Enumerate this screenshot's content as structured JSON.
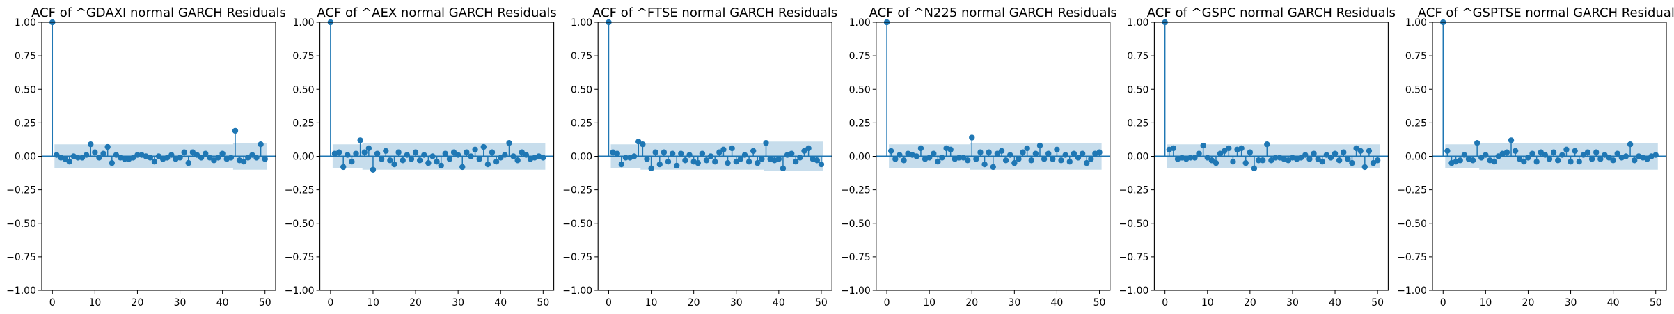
{
  "colors": {
    "stem": "#1f77b4",
    "band": "#1f77b4",
    "axis": "#000000",
    "zero_line": "#1f77b4"
  },
  "chart_data": [
    {
      "type": "scatter",
      "title": "ACF of ^GDAXI normal GARCH Residuals",
      "xlabel": "",
      "ylabel": "",
      "xlim": [
        -2.5,
        52.5
      ],
      "ylim": [
        -1.0,
        1.0
      ],
      "xticks": [
        "0",
        "10",
        "20",
        "30",
        "40",
        "50"
      ],
      "yticks": [
        "1.00",
        "0.75",
        "0.50",
        "0.25",
        "0.00",
        "−0.25",
        "−0.50",
        "−0.75",
        "−1.00"
      ],
      "band": [
        0.1,
        0.09,
        0.09,
        0.09,
        0.09,
        0.09,
        0.09,
        0.09,
        0.09,
        0.09,
        0.09,
        0.09,
        0.09,
        0.09,
        0.09,
        0.09,
        0.09,
        0.09,
        0.09,
        0.09,
        0.09,
        0.09,
        0.09,
        0.09,
        0.09,
        0.09,
        0.09,
        0.09,
        0.09,
        0.09,
        0.09,
        0.09,
        0.09,
        0.09,
        0.09,
        0.09,
        0.09,
        0.09,
        0.09,
        0.09,
        0.09,
        0.09,
        0.09,
        0.1,
        0.1,
        0.1,
        0.1,
        0.1,
        0.1,
        0.1,
        0.1
      ],
      "acf": [
        1.0,
        0.01,
        -0.01,
        -0.02,
        -0.04,
        0.0,
        -0.01,
        -0.01,
        0.01,
        0.09,
        0.03,
        -0.01,
        0.02,
        0.07,
        -0.05,
        0.01,
        -0.01,
        -0.02,
        -0.02,
        -0.01,
        0.01,
        0.01,
        0.0,
        -0.01,
        -0.04,
        0.0,
        -0.02,
        -0.01,
        0.01,
        -0.02,
        -0.01,
        0.03,
        -0.05,
        0.03,
        0.01,
        -0.01,
        0.02,
        -0.01,
        -0.03,
        -0.01,
        0.02,
        -0.02,
        -0.01,
        0.19,
        -0.03,
        -0.04,
        -0.01,
        0.01,
        -0.01,
        0.09,
        -0.02
      ]
    },
    {
      "type": "scatter",
      "title": "ACF of ^AEX normal GARCH Residuals",
      "xlabel": "",
      "ylabel": "",
      "xlim": [
        -2.5,
        52.5
      ],
      "ylim": [
        -1.0,
        1.0
      ],
      "xticks": [
        "0",
        "10",
        "20",
        "30",
        "40",
        "50"
      ],
      "yticks": [
        "1.00",
        "0.75",
        "0.50",
        "0.25",
        "0.00",
        "−0.25",
        "−0.50",
        "−0.75",
        "−1.00"
      ],
      "band": [
        0.09,
        0.09,
        0.09,
        0.09,
        0.09,
        0.09,
        0.09,
        0.09,
        0.1,
        0.1,
        0.1,
        0.1,
        0.1,
        0.1,
        0.1,
        0.1,
        0.1,
        0.1,
        0.1,
        0.1,
        0.1,
        0.1,
        0.1,
        0.1,
        0.1,
        0.1,
        0.1,
        0.1,
        0.1,
        0.1,
        0.1,
        0.1,
        0.1,
        0.1,
        0.1,
        0.1,
        0.1,
        0.1,
        0.1,
        0.1,
        0.1,
        0.1,
        0.1,
        0.1,
        0.1,
        0.1,
        0.1,
        0.1,
        0.1,
        0.1,
        0.1
      ],
      "acf": [
        1.0,
        0.02,
        0.03,
        -0.08,
        0.01,
        -0.04,
        0.02,
        0.12,
        0.03,
        0.06,
        -0.1,
        0.02,
        -0.02,
        0.04,
        -0.03,
        -0.06,
        0.03,
        -0.03,
        0.01,
        -0.02,
        0.03,
        -0.03,
        0.01,
        -0.05,
        0.0,
        -0.04,
        -0.07,
        0.02,
        -0.02,
        0.03,
        0.01,
        -0.08,
        0.03,
        0.0,
        0.05,
        -0.02,
        0.07,
        -0.06,
        0.03,
        -0.04,
        -0.01,
        0.01,
        0.1,
        0.0,
        -0.03,
        0.03,
        0.01,
        -0.02,
        -0.01,
        0.0,
        -0.01
      ]
    },
    {
      "type": "scatter",
      "title": "ACF of ^FTSE normal GARCH Residuals",
      "xlabel": "",
      "ylabel": "",
      "xlim": [
        -2.5,
        52.5
      ],
      "ylim": [
        -1.0,
        1.0
      ],
      "xticks": [
        "0",
        "10",
        "20",
        "30",
        "40",
        "50"
      ],
      "yticks": [
        "1.00",
        "0.75",
        "0.50",
        "0.25",
        "0.00",
        "−0.25",
        "−0.50",
        "−0.75",
        "−1.00"
      ],
      "band": [
        0.09,
        0.09,
        0.09,
        0.09,
        0.09,
        0.09,
        0.09,
        0.09,
        0.1,
        0.1,
        0.1,
        0.1,
        0.1,
        0.1,
        0.1,
        0.1,
        0.1,
        0.1,
        0.1,
        0.1,
        0.1,
        0.1,
        0.1,
        0.1,
        0.1,
        0.1,
        0.1,
        0.1,
        0.1,
        0.1,
        0.1,
        0.1,
        0.1,
        0.1,
        0.1,
        0.1,
        0.1,
        0.11,
        0.11,
        0.11,
        0.11,
        0.11,
        0.11,
        0.11,
        0.11,
        0.11,
        0.11,
        0.11,
        0.11,
        0.11,
        0.11
      ],
      "acf": [
        1.0,
        0.03,
        0.02,
        -0.06,
        -0.01,
        -0.01,
        0.0,
        0.11,
        0.09,
        -0.02,
        -0.09,
        0.03,
        -0.06,
        0.03,
        -0.04,
        0.02,
        -0.07,
        0.02,
        -0.03,
        0.01,
        -0.04,
        -0.05,
        0.02,
        -0.03,
        0.0,
        -0.04,
        0.03,
        0.05,
        -0.05,
        0.06,
        -0.04,
        -0.02,
        0.01,
        -0.04,
        0.04,
        -0.05,
        -0.02,
        0.1,
        -0.02,
        -0.03,
        -0.02,
        -0.09,
        0.01,
        0.02,
        -0.04,
        -0.01,
        0.04,
        0.06,
        -0.02,
        -0.03,
        -0.06
      ]
    },
    {
      "type": "scatter",
      "title": "ACF of ^N225 normal GARCH Residuals",
      "xlabel": "",
      "ylabel": "",
      "xlim": [
        -2.5,
        52.5
      ],
      "ylim": [
        -1.0,
        1.0
      ],
      "xticks": [
        "0",
        "10",
        "20",
        "30",
        "40",
        "50"
      ],
      "yticks": [
        "1.00",
        "0.75",
        "0.50",
        "0.25",
        "0.00",
        "−0.25",
        "−0.50",
        "−0.75",
        "−1.00"
      ],
      "band": [
        0.09,
        0.09,
        0.09,
        0.09,
        0.09,
        0.09,
        0.09,
        0.09,
        0.09,
        0.09,
        0.09,
        0.09,
        0.09,
        0.09,
        0.09,
        0.09,
        0.09,
        0.09,
        0.09,
        0.09,
        0.1,
        0.1,
        0.1,
        0.1,
        0.1,
        0.1,
        0.1,
        0.1,
        0.1,
        0.1,
        0.1,
        0.1,
        0.1,
        0.1,
        0.1,
        0.1,
        0.1,
        0.1,
        0.1,
        0.1,
        0.1,
        0.1,
        0.1,
        0.1,
        0.1,
        0.1,
        0.1,
        0.1,
        0.1,
        0.1,
        0.1
      ],
      "acf": [
        1.0,
        0.04,
        -0.02,
        0.01,
        -0.03,
        0.02,
        0.01,
        0.0,
        0.06,
        -0.02,
        -0.01,
        0.02,
        -0.04,
        -0.01,
        0.06,
        0.05,
        -0.02,
        -0.01,
        -0.01,
        -0.03,
        0.14,
        -0.02,
        0.03,
        -0.06,
        0.03,
        -0.08,
        0.02,
        0.04,
        -0.03,
        0.01,
        -0.05,
        -0.02,
        0.03,
        0.06,
        -0.03,
        0.02,
        0.08,
        -0.02,
        0.02,
        -0.02,
        0.05,
        -0.03,
        0.01,
        -0.04,
        0.02,
        -0.01,
        0.02,
        -0.05,
        -0.02,
        0.02,
        0.03
      ]
    },
    {
      "type": "scatter",
      "title": "ACF of ^GSPC normal GARCH Residuals",
      "xlabel": "",
      "ylabel": "",
      "xlim": [
        -2.5,
        52.5
      ],
      "ylim": [
        -1.0,
        1.0
      ],
      "xticks": [
        "0",
        "10",
        "20",
        "30",
        "40",
        "50"
      ],
      "yticks": [
        "1.00",
        "0.75",
        "0.50",
        "0.25",
        "0.00",
        "−0.25",
        "−0.50",
        "−0.75",
        "−1.00"
      ],
      "band": [
        0.09,
        0.09,
        0.09,
        0.09,
        0.09,
        0.09,
        0.09,
        0.09,
        0.09,
        0.09,
        0.09,
        0.09,
        0.09,
        0.09,
        0.09,
        0.09,
        0.09,
        0.09,
        0.09,
        0.09,
        0.09,
        0.09,
        0.09,
        0.09,
        0.09,
        0.09,
        0.09,
        0.09,
        0.09,
        0.09,
        0.09,
        0.09,
        0.09,
        0.09,
        0.09,
        0.09,
        0.09,
        0.09,
        0.09,
        0.09,
        0.09,
        0.09,
        0.09,
        0.09,
        0.09,
        0.09,
        0.09,
        0.09,
        0.09,
        0.09,
        0.09
      ],
      "acf": [
        1.0,
        0.05,
        0.06,
        -0.02,
        -0.01,
        -0.02,
        -0.01,
        -0.01,
        0.02,
        0.08,
        -0.01,
        -0.03,
        -0.05,
        0.02,
        0.04,
        0.06,
        -0.04,
        0.05,
        0.06,
        -0.05,
        0.03,
        -0.09,
        -0.03,
        -0.03,
        0.09,
        -0.03,
        -0.01,
        -0.01,
        -0.02,
        -0.03,
        -0.01,
        -0.02,
        -0.01,
        0.01,
        -0.02,
        0.02,
        -0.02,
        -0.04,
        0.01,
        -0.01,
        0.02,
        -0.03,
        0.03,
        -0.02,
        -0.05,
        0.06,
        0.04,
        -0.08,
        0.04,
        -0.05,
        -0.03
      ]
    },
    {
      "type": "scatter",
      "title": "ACF of ^GSPTSE normal GARCH Residuals",
      "xlabel": "",
      "ylabel": "",
      "xlim": [
        -2.5,
        52.5
      ],
      "ylim": [
        -1.0,
        1.0
      ],
      "xticks": [
        "0",
        "10",
        "20",
        "30",
        "40",
        "50"
      ],
      "yticks": [
        "1.00",
        "0.75",
        "0.50",
        "0.25",
        "0.00",
        "−0.25",
        "−0.50",
        "−0.75",
        "−1.00"
      ],
      "band": [
        0.09,
        0.09,
        0.09,
        0.09,
        0.09,
        0.09,
        0.09,
        0.09,
        0.09,
        0.1,
        0.1,
        0.1,
        0.1,
        0.1,
        0.1,
        0.1,
        0.1,
        0.1,
        0.1,
        0.1,
        0.1,
        0.1,
        0.1,
        0.1,
        0.1,
        0.1,
        0.1,
        0.1,
        0.1,
        0.1,
        0.1,
        0.1,
        0.1,
        0.1,
        0.1,
        0.1,
        0.1,
        0.1,
        0.1,
        0.1,
        0.1,
        0.1,
        0.1,
        0.1,
        0.1,
        0.1,
        0.1,
        0.1,
        0.1,
        0.1,
        0.1
      ],
      "acf": [
        1.0,
        0.04,
        -0.05,
        -0.04,
        -0.03,
        0.01,
        -0.02,
        -0.03,
        0.1,
        -0.01,
        0.01,
        -0.03,
        -0.04,
        0.0,
        0.02,
        0.03,
        0.12,
        0.04,
        -0.02,
        -0.04,
        -0.01,
        0.02,
        -0.04,
        0.03,
        0.01,
        -0.02,
        0.03,
        -0.03,
        0.01,
        0.05,
        -0.04,
        0.04,
        -0.04,
        0.01,
        0.03,
        -0.02,
        0.03,
        -0.02,
        0.01,
        -0.01,
        -0.03,
        0.02,
        -0.01,
        0.0,
        0.09,
        -0.03,
        0.0,
        -0.01,
        -0.02,
        0.0,
        0.01
      ]
    }
  ]
}
